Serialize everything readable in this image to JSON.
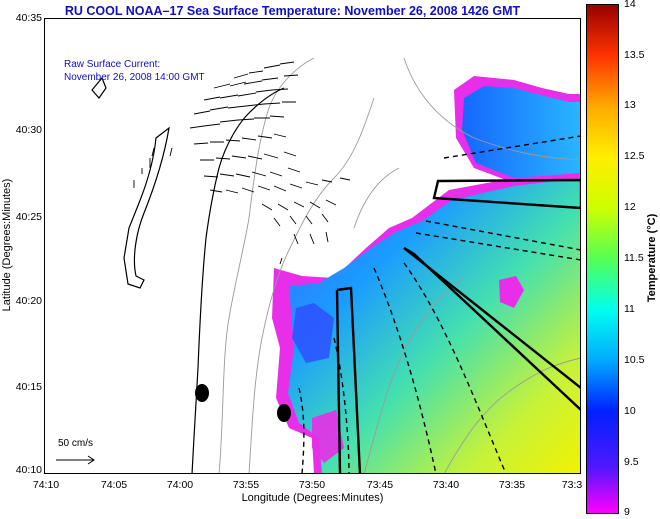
{
  "title": "RU COOL  NOAA–17  Sea Surface Temperature:  November 26, 2008 1426 GMT",
  "title_color": "#1010c0",
  "annotations": {
    "current_label": "Raw Surface Current:",
    "current_time": "November 26, 2008 14:00 GMT",
    "scale_label": "50 cm/s"
  },
  "axes": {
    "xlabel": "Longitude (Degrees:Minutes)",
    "ylabel": "Latitude (Degrees:Minutes)",
    "xticks": [
      "74:10",
      "74:05",
      "74:00",
      "73:55",
      "73:50",
      "73:45",
      "73:40",
      "73:35",
      "73:3"
    ],
    "yticks": [
      "40:35",
      "40:30",
      "40:25",
      "40:20",
      "40:15",
      "40:10"
    ],
    "xlim_minutes_west": [
      10,
      30
    ],
    "ylim_minutes_north": [
      10,
      35
    ]
  },
  "colorbar": {
    "label": "Temperature (°C)",
    "min": 9,
    "max": 14,
    "ticks": [
      "14",
      "13.5",
      "13",
      "12.5",
      "12",
      "11.5",
      "11",
      "10.5",
      "10",
      "9.5",
      "9"
    ],
    "colors": [
      "#ff00ff",
      "#0000ff",
      "#00aaff",
      "#00ffee",
      "#55ff55",
      "#ccff00",
      "#ffff00",
      "#ffaa00",
      "#ff5500",
      "#e60000",
      "#990000"
    ]
  },
  "map": {
    "type": "sst_map_with_current_vectors",
    "water_temperature_range_visible": [
      9,
      12
    ],
    "land_color": "#ffffff",
    "stations": 2
  }
}
